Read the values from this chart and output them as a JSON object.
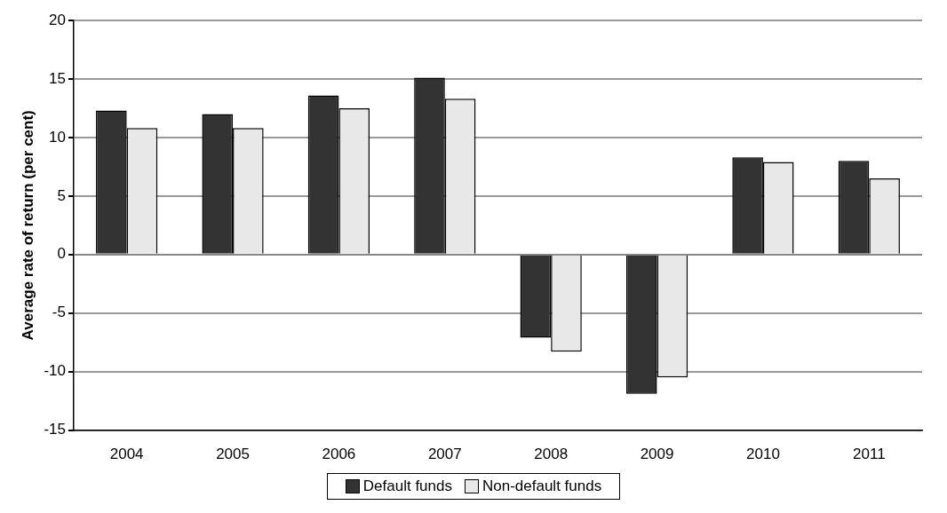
{
  "chart_data": {
    "type": "bar",
    "ylabel": "Average rate of return (per cent)",
    "categories": [
      "2004",
      "2005",
      "2006",
      "2007",
      "2008",
      "2009",
      "2010",
      "2011"
    ],
    "series": [
      {
        "name": "Default funds",
        "color": "#333333",
        "values": [
          12.3,
          12.0,
          13.6,
          15.1,
          -7.1,
          -11.9,
          8.3,
          8.0
        ]
      },
      {
        "name": "Non-default funds",
        "color": "#e8e8e8",
        "values": [
          10.8,
          10.8,
          12.5,
          13.3,
          -8.3,
          -10.5,
          7.9,
          6.5
        ]
      }
    ],
    "ylim": [
      -15,
      20
    ],
    "yticks": [
      -15,
      -10,
      -5,
      0,
      5,
      10,
      15,
      20
    ],
    "grid": "y",
    "legend": "bottom"
  }
}
